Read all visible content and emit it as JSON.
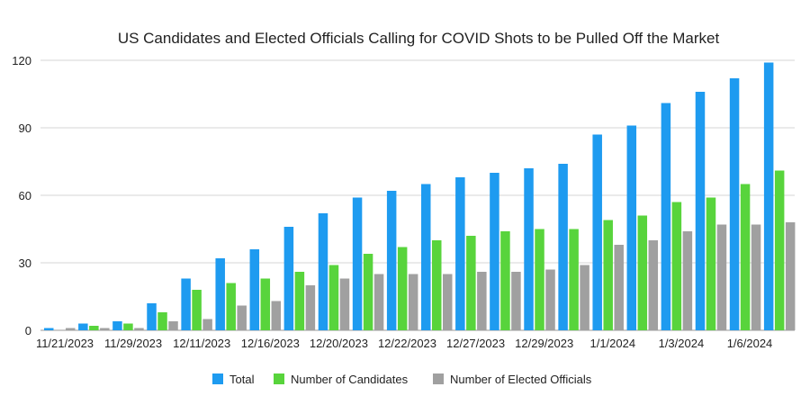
{
  "chart_data": {
    "type": "bar",
    "title": "US Candidates and Elected Officials Calling for COVID Shots to be Pulled Off the Market",
    "xlabel": "",
    "ylabel": "",
    "ylim": [
      0,
      120
    ],
    "yticks": [
      0,
      30,
      60,
      90,
      120
    ],
    "grid": true,
    "legend_position": "bottom",
    "x_tick_labels": [
      "11/21/2023",
      "11/29/2023",
      "12/11/2023",
      "12/16/2023",
      "12/20/2023",
      "12/22/2023",
      "12/27/2023",
      "12/29/2023",
      "1/1/2024",
      "1/3/2024",
      "1/6/2024"
    ],
    "series": [
      {
        "name": "Total",
        "color": "#1e9bf0",
        "values": [
          1,
          3,
          4,
          12,
          23,
          32,
          36,
          46,
          52,
          59,
          62,
          65,
          68,
          70,
          72,
          74,
          87,
          91,
          101,
          106,
          112,
          119
        ]
      },
      {
        "name": "Number of Candidates",
        "color": "#58d43c",
        "values": [
          0,
          2,
          3,
          8,
          18,
          21,
          23,
          26,
          29,
          34,
          37,
          40,
          42,
          44,
          45,
          45,
          49,
          51,
          57,
          59,
          65,
          71
        ]
      },
      {
        "name": "Number of Elected Officials",
        "color": "#a0a0a0",
        "values": [
          1,
          1,
          1,
          4,
          5,
          11,
          13,
          20,
          23,
          25,
          25,
          25,
          26,
          26,
          27,
          29,
          38,
          40,
          44,
          47,
          47,
          48
        ]
      }
    ]
  }
}
